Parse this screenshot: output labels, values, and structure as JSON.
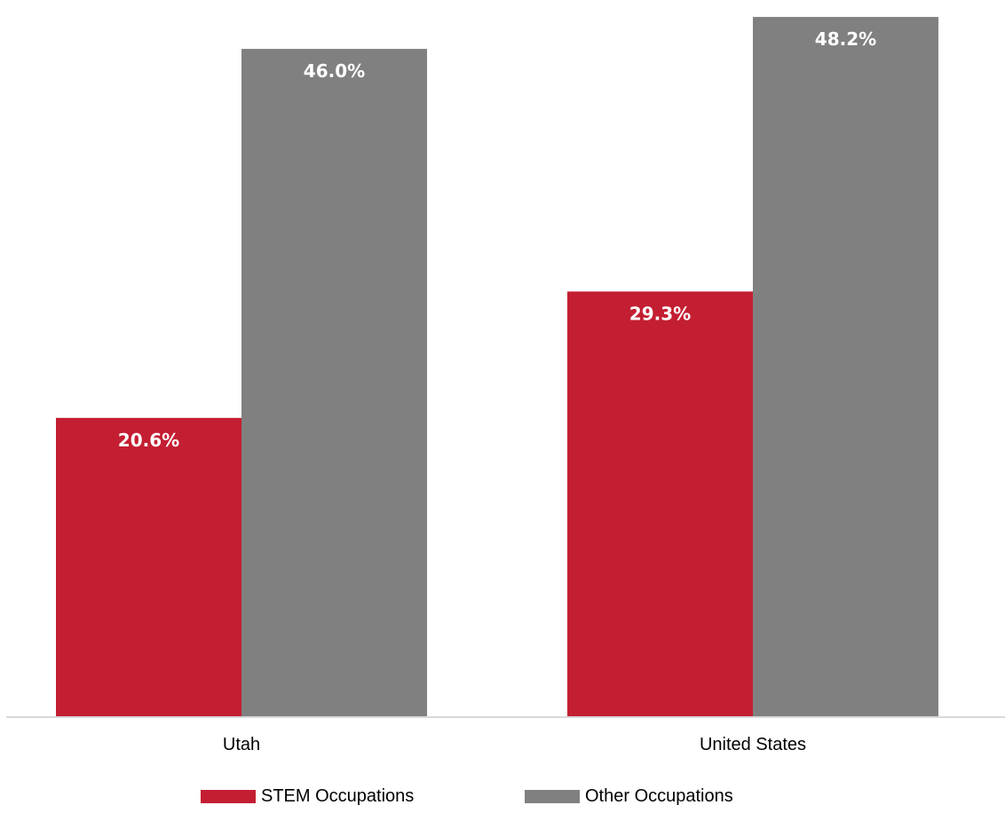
{
  "chart_data": {
    "type": "bar",
    "categories": [
      "Utah",
      "United States"
    ],
    "series": [
      {
        "name": "STEM Occupations",
        "values": [
          20.6,
          29.3
        ],
        "labels": [
          "20.6%",
          "29.3%"
        ],
        "color": "#C41E32"
      },
      {
        "name": "Other Occupations",
        "values": [
          46.0,
          48.2
        ],
        "labels": [
          "46.0%",
          "48.2%"
        ],
        "color": "#808080"
      }
    ],
    "title": "",
    "xlabel": "",
    "ylabel": "",
    "ylim": [
      0,
      49
    ],
    "grid": false,
    "legend": "bottom",
    "axis_color": "#D9D9D9"
  }
}
